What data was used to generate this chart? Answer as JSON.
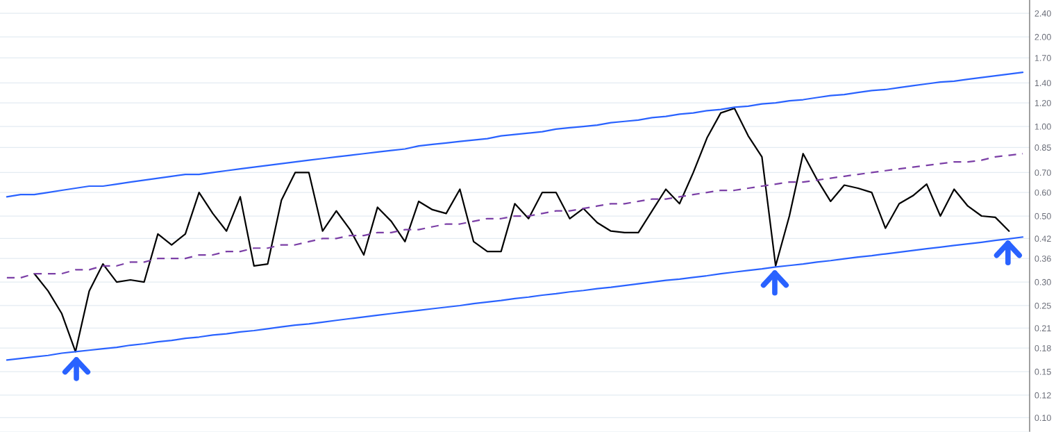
{
  "chart_data": {
    "type": "line",
    "log": "y",
    "grid": "y",
    "tick_labels": "y",
    "categories": [
      null,
      null,
      null,
      null,
      null,
      null,
      null,
      null,
      null,
      null,
      null,
      null,
      null,
      null,
      null,
      null,
      null,
      null,
      null,
      null,
      null,
      null,
      null,
      null,
      null,
      null,
      null,
      null,
      null,
      null,
      null,
      null,
      null,
      null,
      null,
      null,
      null,
      null,
      null,
      null,
      null,
      null,
      null,
      null,
      null,
      null,
      null,
      null,
      null,
      null,
      null,
      null,
      null,
      null,
      null,
      null,
      null,
      null,
      null,
      null,
      null,
      null,
      null,
      null,
      null,
      null,
      null,
      null,
      null,
      null,
      null,
      null,
      null,
      null,
      null
    ],
    "ylim": [
      0.094,
      2.66
    ],
    "yticks": [
      {
        "value": 0.105,
        "label": "0.10"
      },
      {
        "value": 0.125,
        "label": "0.12"
      },
      {
        "value": 0.15,
        "label": "0.15"
      },
      {
        "value": 0.18,
        "label": "0.18"
      },
      {
        "value": 0.21,
        "label": "0.21"
      },
      {
        "value": 0.25,
        "label": "0.25"
      },
      {
        "value": 0.3,
        "label": "0.30"
      },
      {
        "value": 0.36,
        "label": "0.36"
      },
      {
        "value": 0.42,
        "label": "0.42"
      },
      {
        "value": 0.5,
        "label": "0.50"
      },
      {
        "value": 0.6,
        "label": "0.60"
      },
      {
        "value": 0.7,
        "label": "0.70"
      },
      {
        "value": 0.85,
        "label": "0.85"
      },
      {
        "value": 1.0,
        "label": "1.00"
      },
      {
        "value": 1.2,
        "label": "1.20"
      },
      {
        "value": 1.4,
        "label": "1.40"
      },
      {
        "value": 1.7,
        "label": "1.70"
      },
      {
        "value": 2.0,
        "label": "2.00"
      },
      {
        "value": 2.4,
        "label": "2.40"
      }
    ],
    "series": [
      {
        "type": "line",
        "color": "#000000",
        "line_style": "solid",
        "values": [
          null,
          null,
          0.32,
          0.28,
          0.235,
          0.175,
          0.28,
          0.345,
          0.3,
          0.305,
          0.3,
          0.435,
          0.4,
          0.435,
          0.6,
          0.51,
          0.445,
          0.58,
          0.34,
          0.345,
          0.565,
          0.7,
          0.7,
          0.445,
          0.52,
          0.45,
          0.37,
          0.535,
          0.48,
          0.41,
          0.56,
          0.525,
          0.51,
          0.615,
          0.41,
          0.38,
          0.38,
          0.55,
          0.49,
          0.6,
          0.6,
          0.49,
          0.53,
          0.475,
          0.445,
          0.44,
          0.44,
          0.52,
          0.615,
          0.55,
          0.7,
          0.915,
          1.11,
          1.15,
          0.93,
          0.79,
          0.34,
          0.5,
          0.81,
          0.665,
          0.56,
          0.635,
          0.62,
          0.6,
          0.455,
          0.55,
          0.585,
          0.64,
          0.5,
          0.615,
          0.54,
          0.5,
          0.495,
          0.445,
          null
        ]
      },
      {
        "type": "line",
        "color": "#2962ff",
        "line_style": "solid",
        "values": [
          0.58,
          0.59,
          0.59,
          0.6,
          0.61,
          0.62,
          0.63,
          0.63,
          0.64,
          0.65,
          0.66,
          0.67,
          0.68,
          0.69,
          0.69,
          0.7,
          0.71,
          0.72,
          0.73,
          0.74,
          0.75,
          0.76,
          0.77,
          0.78,
          0.79,
          0.8,
          0.81,
          0.82,
          0.83,
          0.84,
          0.86,
          0.87,
          0.88,
          0.89,
          0.9,
          0.91,
          0.93,
          0.94,
          0.95,
          0.96,
          0.98,
          0.99,
          1.0,
          1.01,
          1.03,
          1.04,
          1.05,
          1.07,
          1.08,
          1.1,
          1.11,
          1.13,
          1.14,
          1.16,
          1.17,
          1.19,
          1.2,
          1.22,
          1.23,
          1.25,
          1.27,
          1.28,
          1.3,
          1.32,
          1.33,
          1.35,
          1.37,
          1.39,
          1.41,
          1.42,
          1.44,
          1.46,
          1.48,
          1.5,
          1.52
        ]
      },
      {
        "type": "line",
        "color": "#2962ff",
        "line_style": "solid",
        "values": [
          0.164,
          0.166,
          0.168,
          0.17,
          0.173,
          0.175,
          0.177,
          0.179,
          0.181,
          0.184,
          0.186,
          0.189,
          0.191,
          0.194,
          0.196,
          0.199,
          0.201,
          0.204,
          0.206,
          0.209,
          0.212,
          0.215,
          0.217,
          0.22,
          0.223,
          0.226,
          0.229,
          0.232,
          0.235,
          0.238,
          0.241,
          0.244,
          0.247,
          0.25,
          0.254,
          0.257,
          0.26,
          0.264,
          0.267,
          0.271,
          0.274,
          0.278,
          0.281,
          0.285,
          0.288,
          0.292,
          0.296,
          0.3,
          0.304,
          0.307,
          0.311,
          0.315,
          0.32,
          0.324,
          0.328,
          0.332,
          0.337,
          0.341,
          0.345,
          0.35,
          0.354,
          0.359,
          0.364,
          0.368,
          0.373,
          0.378,
          0.383,
          0.388,
          0.393,
          0.398,
          0.403,
          0.408,
          0.414,
          0.419,
          0.425
        ]
      },
      {
        "type": "line",
        "color": "#7b3fa6",
        "line_style": "dashed",
        "values": [
          0.31,
          0.31,
          0.32,
          0.32,
          0.32,
          0.33,
          0.33,
          0.34,
          0.34,
          0.35,
          0.35,
          0.36,
          0.36,
          0.36,
          0.37,
          0.37,
          0.38,
          0.38,
          0.39,
          0.39,
          0.4,
          0.4,
          0.41,
          0.42,
          0.42,
          0.43,
          0.43,
          0.44,
          0.44,
          0.45,
          0.45,
          0.46,
          0.47,
          0.47,
          0.48,
          0.49,
          0.49,
          0.5,
          0.5,
          0.51,
          0.52,
          0.52,
          0.53,
          0.54,
          0.55,
          0.55,
          0.56,
          0.57,
          0.57,
          0.58,
          0.59,
          0.6,
          0.61,
          0.61,
          0.62,
          0.63,
          0.64,
          0.65,
          0.65,
          0.66,
          0.67,
          0.68,
          0.69,
          0.7,
          0.71,
          0.72,
          0.73,
          0.74,
          0.75,
          0.76,
          0.76,
          0.77,
          0.79,
          0.8,
          0.81
        ]
      }
    ]
  }
}
